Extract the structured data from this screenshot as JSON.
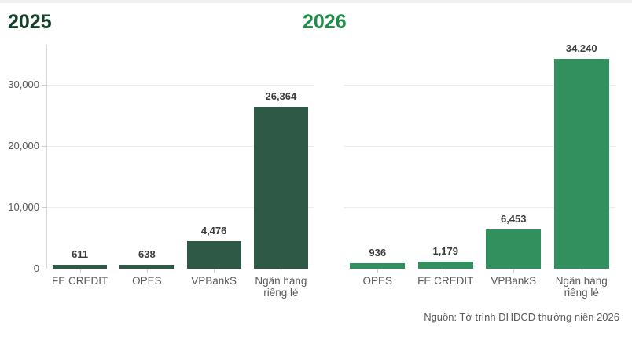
{
  "page": {
    "source_note": "Nguồn: Tờ trình ĐHĐCĐ thường niên 2026"
  },
  "chart_data": [
    {
      "type": "bar",
      "title": "2025",
      "title_color": "#14402a",
      "bar_color": "#2e5946",
      "categories": [
        "FE CREDIT",
        "OPES",
        "VPBankS",
        "Ngân hàng riêng lẻ"
      ],
      "values": [
        611,
        638,
        4476,
        26364
      ],
      "value_labels": [
        "611",
        "638",
        "4,476",
        "26,364"
      ],
      "ylim": [
        0,
        36500
      ],
      "yticks": [
        0,
        10000,
        20000,
        30000
      ],
      "ytick_labels": [
        "0",
        "10,000",
        "20,000",
        "30,000"
      ],
      "grid": true,
      "y_axis_labels_visible": true,
      "legend": "none"
    },
    {
      "type": "bar",
      "title": "2026",
      "title_color": "#1f8c47",
      "bar_color": "#32905e",
      "categories": [
        "OPES",
        "FE CREDIT",
        "VPBankS",
        "Ngân hàng riêng lẻ"
      ],
      "values": [
        936,
        1179,
        6453,
        34240
      ],
      "value_labels": [
        "936",
        "1,179",
        "6,453",
        "34,240"
      ],
      "ylim": [
        0,
        36500
      ],
      "yticks": [
        0,
        10000,
        20000,
        30000
      ],
      "ytick_labels": [
        "0",
        "10,000",
        "20,000",
        "30,000"
      ],
      "grid": true,
      "y_axis_labels_visible": false,
      "legend": "none"
    }
  ]
}
